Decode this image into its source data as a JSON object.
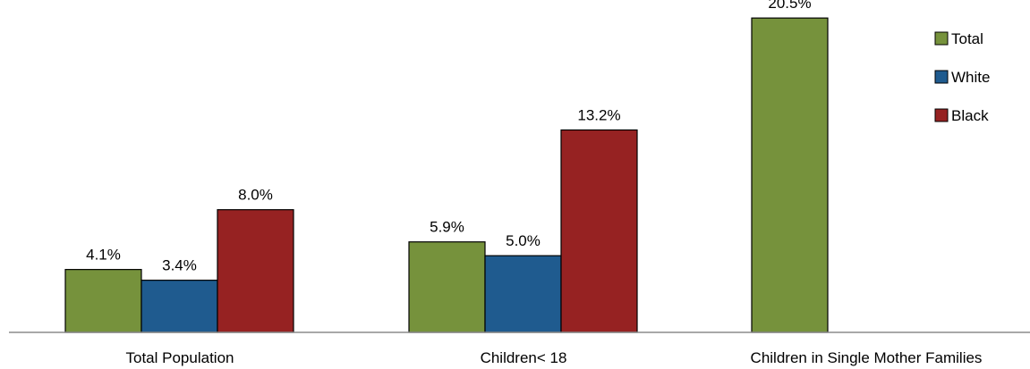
{
  "chart_data": {
    "type": "bar",
    "categories": [
      "Total Population",
      "Children< 18",
      "Children in Single Mother Families"
    ],
    "series": [
      {
        "name": "Total",
        "color": "#76923c",
        "values": [
          4.1,
          5.9,
          20.5
        ],
        "labels": [
          "4.1%",
          "5.9%",
          "20.5%"
        ]
      },
      {
        "name": "White",
        "color": "#1f5b8f",
        "values": [
          3.4,
          5.0,
          null
        ],
        "labels": [
          "3.4%",
          "5.0%",
          ""
        ]
      },
      {
        "name": "Black",
        "color": "#962222",
        "values": [
          8.0,
          13.2,
          null
        ],
        "labels": [
          "8.0%",
          "13.2%",
          ""
        ]
      }
    ],
    "title": "",
    "xlabel": "",
    "ylabel": "",
    "ylim": [
      0,
      21.5
    ],
    "grid": false,
    "legend_position": "top-right"
  }
}
